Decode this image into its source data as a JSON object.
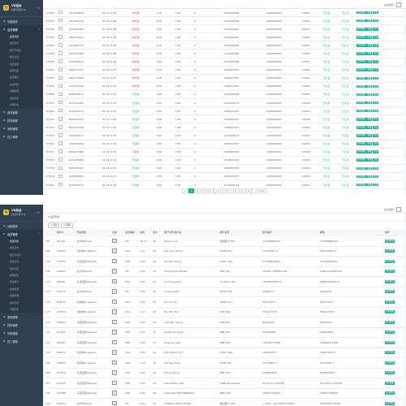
{
  "brand": {
    "title": "VS后台",
    "subtitle": "超级管理员 ▼"
  },
  "sidebar": {
    "groups": [
      {
        "label": "功能模块",
        "icon": "grid-icon"
      },
      {
        "label": "会员管理",
        "icon": "users-icon",
        "open": true,
        "items": [
          "会员列表",
          "会员日志",
          "银行卡列表",
          "账变记录",
          "充值列表",
          "提现列表",
          "会员统计",
          "在线列表",
          "层级管理",
          "返水记录",
          "代理列表"
        ]
      },
      {
        "label": "游戏管理",
        "icon": "gamepad-icon"
      },
      {
        "label": "财务管理",
        "icon": "money-icon"
      },
      {
        "label": "系统管理",
        "icon": "gear-icon"
      },
      {
        "label": "员工管理",
        "icon": "user-icon"
      }
    ]
  },
  "topbar": {
    "right_label": "后台首页"
  },
  "screen1": {
    "rows": [
      {
        "id": "377568",
        "user": "0115848614",
        "date": "02-15 16:01",
        "status": "未处理",
        "s": "red",
        "amt": "0.00",
        "fee": "0.00",
        "n": "0",
        "acct": "0101568004",
        "card": "6229580006",
        "bal": "0.0000",
        "state": "已认证"
      },
      {
        "id": "377567",
        "user": "0115849179",
        "date": "02-15 16:00",
        "status": "未处理",
        "s": "red",
        "amt": "0.00",
        "fee": "0.00",
        "n": "0",
        "acct": "0101568004",
        "card": "6229580006",
        "bal": "0.0000",
        "state": "已认证"
      },
      {
        "id": "377566",
        "user": "0115846381",
        "date": "02-15 16:00",
        "status": "未处理",
        "s": "red",
        "amt": "0.00",
        "fee": "0.00",
        "n": "0",
        "acct": "0101568003",
        "card": "6229580006",
        "bal": "0.0000",
        "state": "已认证"
      },
      {
        "id": "377565",
        "user": "0050276511",
        "date": "02-15 15:59",
        "status": "未处理",
        "s": "red",
        "amt": "0.00",
        "fee": "0.00",
        "n": "0",
        "acct": "0101568003",
        "card": "6229580006",
        "bal": "0.0000",
        "state": "已认证"
      },
      {
        "id": "377564",
        "user": "0115848730",
        "date": "02-15 15:59",
        "status": "未处理",
        "s": "red",
        "amt": "0.00",
        "fee": "0.00",
        "n": "0",
        "acct": "0101568004",
        "card": "6229580006",
        "bal": "0.0000",
        "state": "已认证"
      },
      {
        "id": "377563",
        "user": "0016934385",
        "date": "02-15 15:58",
        "status": "未处理",
        "s": "red",
        "amt": "0.00",
        "fee": "0.00",
        "n": "0",
        "acct": "0101568004",
        "card": "6229580006",
        "bal": "0.0000",
        "state": "已认证"
      },
      {
        "id": "377562",
        "user": "0115859120",
        "date": "02-15 15:58",
        "status": "未处理",
        "s": "red",
        "amt": "0.00",
        "fee": "0.00",
        "n": "0",
        "acct": "0101568004",
        "card": "6229580006",
        "bal": "0.0000",
        "state": "已认证"
      },
      {
        "id": "377561",
        "user": "0080117912",
        "date": "02-15 15:57",
        "status": "未处理",
        "s": "red",
        "amt": "0.00",
        "fee": "0.00",
        "n": "0",
        "acct": "0089163507",
        "card": "6229580006",
        "bal": "0.0000",
        "state": "已认证"
      },
      {
        "id": "377560",
        "user": "0087715806",
        "date": "02-15 15:57",
        "status": "未处理",
        "s": "red",
        "amt": "0.00",
        "fee": "0.00",
        "n": "0",
        "acct": "0089163507",
        "card": "6229580006",
        "bal": "0.0000",
        "state": "已认证"
      },
      {
        "id": "377559",
        "user": "0175116796",
        "date": "02-15 15:57",
        "status": "未处理",
        "s": "red",
        "amt": "0.00",
        "fee": "0.00",
        "n": "0",
        "acct": "0089163507",
        "card": "6229580006",
        "bal": "0.0000",
        "state": "已认证"
      },
      {
        "id": "377558",
        "user": "0065583271",
        "date": "02-15 15:57",
        "status": "已完成",
        "s": "green",
        "amt": "0.00",
        "fee": "0.00",
        "n": "0",
        "acct": "0101568004",
        "card": "6229580006",
        "bal": "0.0000",
        "state": "已认证"
      },
      {
        "id": "377557",
        "user": "0171132050",
        "date": "02-15 15:47",
        "status": "已完成",
        "s": "green",
        "amt": "0.00",
        "fee": "0.00",
        "n": "0",
        "acct": "0101568778",
        "card": "6229580006",
        "bal": "0.0000",
        "state": "已认证"
      },
      {
        "id": "377556",
        "user": "0115853377",
        "date": "02-15 15:40",
        "status": "已完成",
        "s": "green",
        "amt": "0.00",
        "fee": "0.00",
        "n": "0",
        "acct": "0089163507",
        "card": "6229580006",
        "bal": "0.0000",
        "state": "已认证"
      },
      {
        "id": "377555",
        "user": "0050661497",
        "date": "02-15 14:34",
        "status": "已完成",
        "s": "green",
        "amt": "0.00",
        "fee": "0.00",
        "n": "0",
        "acct": "0089163507",
        "card": "6229580006",
        "bal": "0.0000",
        "state": "已认证"
      },
      {
        "id": "377554",
        "user": "0051047396",
        "date": "02-15 12:34",
        "status": "已完成",
        "s": "green",
        "amt": "0.00",
        "fee": "0.00",
        "n": "0",
        "acct": "0089163507",
        "card": "6229580006",
        "bal": "0.0000",
        "state": "已认证"
      },
      {
        "id": "377553",
        "user": "0115848773",
        "date": "02-15 12:34",
        "status": "已完成",
        "s": "green",
        "amt": "0.00",
        "fee": "0.00",
        "n": "0",
        "acct": "0101568778",
        "card": "6229580006",
        "bal": "0.0000",
        "state": "已认证"
      },
      {
        "id": "377552",
        "user": "0103576063",
        "date": "02-14 15:46",
        "status": "已完成",
        "s": "green",
        "amt": "0.00",
        "fee": "0.00",
        "n": "0",
        "acct": "0089163507",
        "card": "6229580006",
        "bal": "0.0000",
        "state": "已认证"
      },
      {
        "id": "377551",
        "user": "0080277986",
        "date": "02-14 15:44",
        "status": "已拒绝",
        "s": "red",
        "amt": "0.00",
        "fee": "0.00",
        "n": "0",
        "acct": "0089163507",
        "card": "6229580006",
        "bal": "0.0000",
        "state": "已认证"
      },
      {
        "id": "377550",
        "user": "0115955469",
        "date": "02-14 15:13",
        "status": "已完成",
        "s": "green",
        "amt": "0.00",
        "fee": "0.00",
        "n": "0",
        "acct": "0108832255",
        "card": "6229580006",
        "bal": "0.0000",
        "state": "已认证"
      },
      {
        "id": "377549",
        "user": "0050661497",
        "date": "02-14 15:13",
        "status": "已完成",
        "s": "green",
        "amt": "0.00",
        "fee": "0.00",
        "n": "0",
        "acct": "0089163507",
        "card": "6229580006",
        "bal": "0.0000",
        "state": "已认证"
      },
      {
        "id": "377548",
        "user": "0100688322",
        "date": "02-14 15:13",
        "status": "已完成",
        "s": "green",
        "amt": "0.00",
        "fee": "0.00",
        "n": "0",
        "acct": "0089163507",
        "card": "6229580006",
        "bal": "0.0000",
        "state": "已认证"
      },
      {
        "id": "377547",
        "user": "0115853377",
        "date": "02-14 15:09",
        "status": "已完成",
        "s": "green",
        "amt": "0.00",
        "fee": "0.00",
        "n": "0",
        "acct": "0101568778",
        "card": "6229580006",
        "bal": "0.0000",
        "state": "已认证"
      }
    ],
    "actions": [
      "资金明细",
      "编辑",
      "冻结"
    ],
    "pager": [
      "«",
      "1",
      "2",
      "3",
      "4",
      "5",
      "6",
      "7",
      "8",
      "9",
      "10",
      "...",
      "Next"
    ]
  },
  "screen2": {
    "breadcrumb": "会员列表",
    "toolbar": [
      "添加",
      "刷新"
    ],
    "headers": [
      "",
      "用户ID",
      "所在国家",
      "头像",
      "会员等级",
      "余额",
      "积分",
      "银行卡号/用户名",
      "银行名称",
      "银行编号",
      "邮箱",
      "操作"
    ],
    "rows": [
      {
        "id": "181",
        "uid": "221751",
        "cty": "台湾省Taiwan",
        "lvl": "TW",
        "bal": "26.13",
        "pts": "20",
        "name": "Steven Xue",
        "bank": "中國银行(TW)",
        "code": "130306882226",
        "mail": "130306882226"
      },
      {
        "id": "180",
        "uid": "224003",
        "cty": "新加坡Singapore",
        "lvl": "SGD",
        "bal": "1.22",
        "pts": "20",
        "name": "Lee Yuan Phuan",
        "bank": "POSB (SG)",
        "code": "232-42981-6",
        "mail": "232-42981-6"
      },
      {
        "id": "179",
        "uid": "477755",
        "cty": "马来西亚Malaysia",
        "lvl": "MYR",
        "bal": "0.00",
        "pts": "20",
        "name": "Tan Boh Leong",
        "bank": "OCBC (SG)",
        "code": "575126846001",
        "mail": "575126846001"
      },
      {
        "id": "178",
        "uid": "316022",
        "cty": "台湾省Taiwan",
        "lvl": "TW",
        "bal": "0.00",
        "pts": "20",
        "name": "Andreli Grandflower",
        "bank": "DBS (HK)",
        "code": "100024 7083952236",
        "mail": "100024708395236"
      },
      {
        "id": "177",
        "uid": "440861",
        "cty": "马来西亚Malaysia",
        "lvl": "MYR",
        "bal": "0.00",
        "pts": "20",
        "name": "Chin Leng Kee",
        "bank": "Am Bank (MY)",
        "code": "1050005694474",
        "mail": "1050005694474"
      },
      {
        "id": "176",
        "uid": "134170",
        "cty": "台湾省Taiwan",
        "lvl": "TW",
        "bal": "0.00",
        "pts": "20",
        "name": "Chiouyuehen",
        "bank": "ESUN (TW)",
        "code": "44626231",
        "mail": "44626231"
      },
      {
        "id": "175",
        "uid": "819900",
        "cty": "新加坡Singapore",
        "lvl": "SGD",
        "bal": "0.00",
        "pts": "20",
        "name": "Tan Yen Hui",
        "bank": "POSB (SG)",
        "code": "467121677",
        "mail": "467121677"
      },
      {
        "id": "174",
        "uid": "181834",
        "cty": "新加坡Singapore",
        "lvl": "SGD",
        "bal": "1.22",
        "pts": "20",
        "name": "Tan Wei Hsin",
        "bank": "UOB (SG)",
        "code": "3564137107",
        "mail": "3564137107"
      },
      {
        "id": "173",
        "uid": "378842",
        "cty": "马来西亚Malaysia",
        "lvl": "MYR",
        "bal": "0.00",
        "pts": "20",
        "name": "Liew Ban Leong",
        "bank": "RHB (MY)",
        "code": "66230920",
        "mail": "66230920"
      },
      {
        "id": "172",
        "uid": "511447",
        "cty": "马来西亚Malaysia",
        "lvl": "MYR",
        "bal": "0.00",
        "pts": "20",
        "name": "Khaith swe ping",
        "bank": "PBB (MY)",
        "code": "429494881",
        "mail": "429494881"
      },
      {
        "id": "171",
        "uid": "052787",
        "cty": "马来西亚Malaysia",
        "lvl": "MYR",
        "bal": "0.00",
        "pts": "20",
        "name": "dong fee hiew",
        "bank": "MBB (MY)",
        "code": "158168174380",
        "mail": "158168174380"
      },
      {
        "id": "170",
        "uid": "180015",
        "cty": "新加坡Singapore",
        "lvl": "SGD",
        "bal": "0.00",
        "pts": "20",
        "name": "Leong Boon Hon",
        "bank": "OCBC (SG)",
        "code": "7844018577",
        "mail": "7844018577"
      },
      {
        "id": "169",
        "uid": "304650",
        "cty": "新加坡Singapore",
        "lvl": "SGD",
        "bal": "1.23",
        "pts": "20",
        "name": "Koh Kee Chua",
        "bank": "POSB (SG)",
        "code": "291-85807-7",
        "mail": "291-85807-7"
      },
      {
        "id": "168",
        "uid": "327842",
        "cty": "马来西亚Malaysia",
        "lvl": "MYR",
        "bal": "0.00",
        "pts": "20",
        "name": "toh lai keong",
        "bank": "PBB (MY)",
        "code": "6468958831",
        "mail": "6468958831"
      },
      {
        "id": "167",
        "uid": "161126",
        "cty": "马来西亚Malaysia",
        "lvl": "MYR",
        "bal": "0.00",
        "pts": "20",
        "name": "Gabing Boon Kee",
        "bank": "HSBC(Bumipatch)",
        "code": "46-33-01-1203758",
        "mail": "46-33-01-1203758"
      },
      {
        "id": "166",
        "uid": "270388",
        "cty": "马来西亚Malaysia",
        "lvl": "MYR",
        "bal": "0.00",
        "pts": "20",
        "name": "wSahidyja EXFUDRZRAN+",
        "bank": "MBB (MY)",
        "code": "158301265844",
        "mail": "158301265844"
      },
      {
        "id": "165",
        "uid": "102529",
        "cty": "台湾省Taiwan",
        "lvl": "TW",
        "bal": "0.00",
        "pts": "20",
        "name": "TSONGLI PANG CHANG",
        "bank": "國立銀行 (TW)",
        "code": "+ 20KG - 00724000774683",
        "mail": "00724000774683"
      },
      {
        "id": "164",
        "uid": "584878",
        "cty": "新加坡Singapore",
        "lvl": "SGD",
        "bal": "1.23",
        "pts": "20",
        "name": "Tan Loo Guay",
        "bank": "OCBC (SG)",
        "code": "588-1-111960",
        "mail": "588-1-111960"
      }
    ],
    "action": "资金明细"
  }
}
